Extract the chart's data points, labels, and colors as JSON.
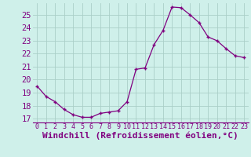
{
  "x": [
    0,
    1,
    2,
    3,
    4,
    5,
    6,
    7,
    8,
    9,
    10,
    11,
    12,
    13,
    14,
    15,
    16,
    17,
    18,
    19,
    20,
    21,
    22,
    23
  ],
  "y": [
    19.5,
    18.7,
    18.3,
    17.7,
    17.3,
    17.1,
    17.1,
    17.4,
    17.5,
    17.6,
    18.3,
    20.8,
    20.9,
    22.7,
    23.8,
    25.6,
    25.55,
    25.0,
    24.4,
    23.3,
    23.0,
    22.4,
    21.85,
    21.7
  ],
  "line_color": "#800080",
  "marker": "+",
  "bg_color": "#cff0ea",
  "grid_color": "#aacfc8",
  "xlabel": "Windchill (Refroidissement éolien,°C)",
  "ylim": [
    16.7,
    25.9
  ],
  "xlim": [
    -0.5,
    23.5
  ],
  "yticks": [
    17,
    18,
    19,
    20,
    21,
    22,
    23,
    24,
    25
  ],
  "xticks": [
    0,
    1,
    2,
    3,
    4,
    5,
    6,
    7,
    8,
    9,
    10,
    11,
    12,
    13,
    14,
    15,
    16,
    17,
    18,
    19,
    20,
    21,
    22,
    23
  ],
  "axis_color": "#800080",
  "tick_color": "#800080",
  "ytick_fontsize": 7.5,
  "xtick_fontsize": 6.0,
  "xlabel_fontsize": 8.0
}
